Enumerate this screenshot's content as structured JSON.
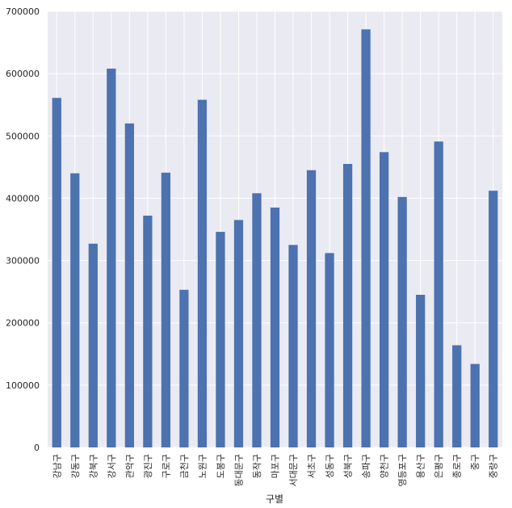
{
  "chart_data": {
    "type": "bar",
    "xlabel": "구별",
    "ylabel": "",
    "ylim": [
      0,
      700000
    ],
    "yticks": [
      0,
      100000,
      200000,
      300000,
      400000,
      500000,
      600000,
      700000
    ],
    "grid": true,
    "legend": "none",
    "bar_color": "#4c72b0",
    "background_color": "#eaeaf2",
    "grid_color": "#ffffff",
    "categories": [
      "강남구",
      "강동구",
      "강북구",
      "강서구",
      "관악구",
      "광진구",
      "구로구",
      "금천구",
      "노원구",
      "도봉구",
      "동대문구",
      "동작구",
      "마포구",
      "서대문구",
      "서초구",
      "성동구",
      "성북구",
      "송파구",
      "양천구",
      "영등포구",
      "용산구",
      "은평구",
      "종로구",
      "중구",
      "중랑구"
    ],
    "values": [
      561000,
      440000,
      327000,
      608000,
      520000,
      372000,
      441000,
      253000,
      558000,
      346000,
      365000,
      408000,
      385000,
      325000,
      445000,
      312000,
      455000,
      671000,
      474000,
      402000,
      245000,
      491000,
      164000,
      134000,
      412000
    ]
  }
}
